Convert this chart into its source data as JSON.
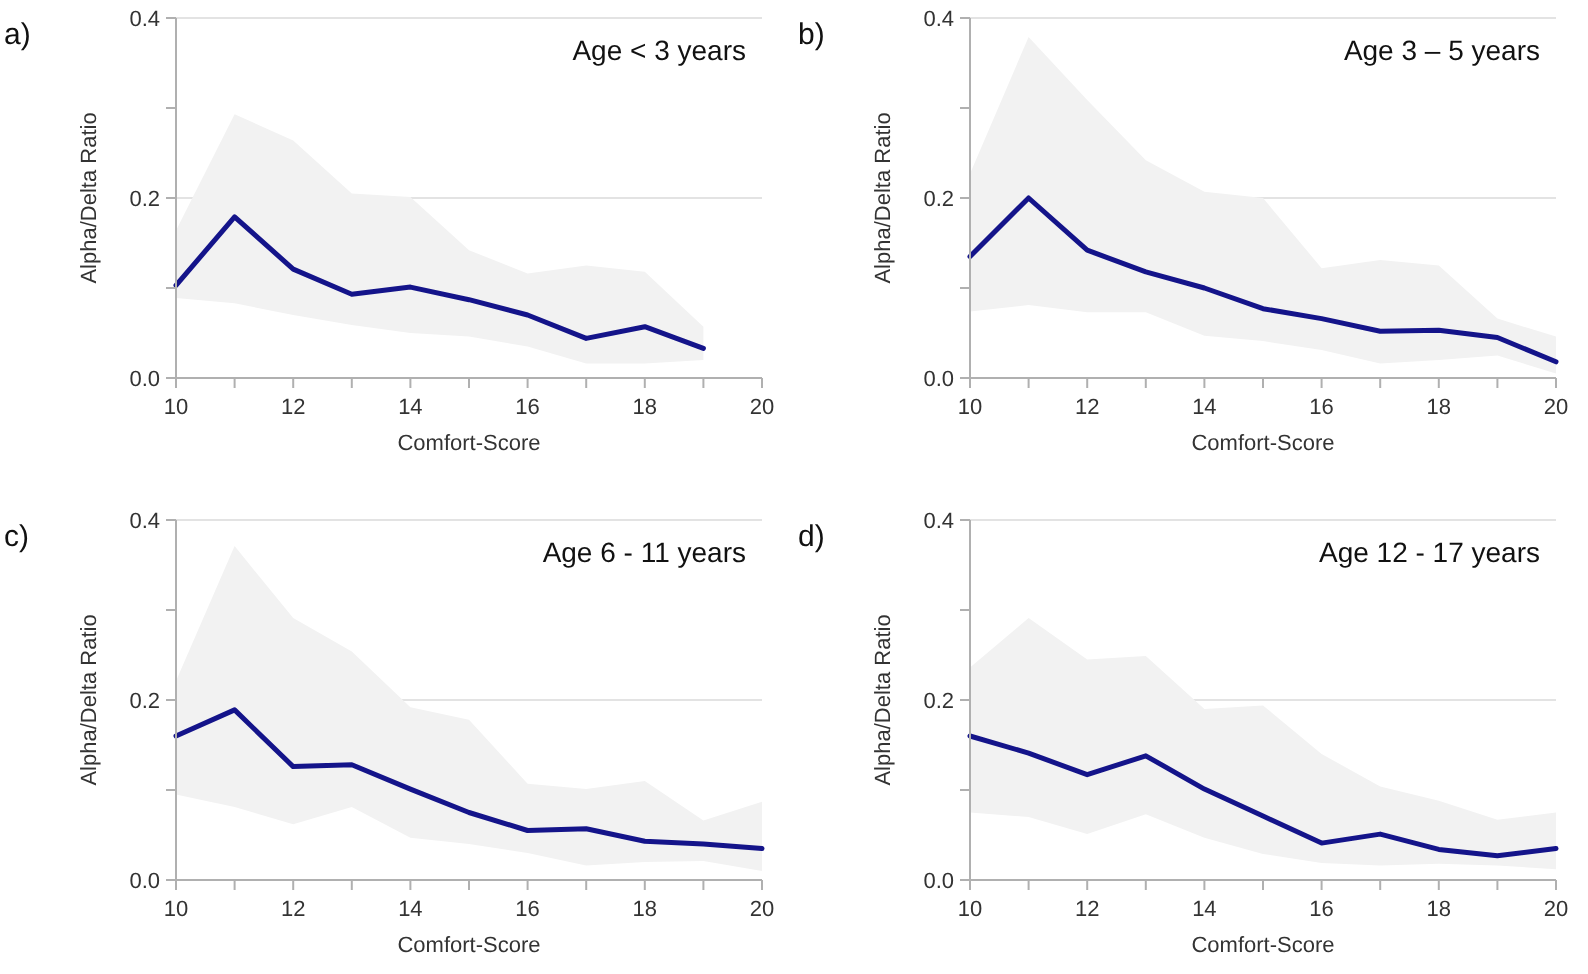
{
  "chart_data": [
    {
      "type": "line",
      "title": "a)",
      "subtitle": "Age < 3 years",
      "xlabel": "Comfort-Score",
      "ylabel": "Alpha/Delta Ratio",
      "x": [
        10,
        11,
        12,
        13,
        14,
        15,
        16,
        17,
        18,
        19
      ],
      "xlim": [
        10,
        20
      ],
      "xticks": [
        10,
        {
          "value": 11,
          "label": null
        },
        12,
        {
          "value": 13,
          "label": null
        },
        14,
        {
          "value": 15,
          "label": null
        },
        16,
        {
          "value": 17,
          "label": null
        },
        18,
        {
          "value": 19,
          "label": null
        },
        20
      ],
      "ylim": [
        0,
        0.4
      ],
      "yticks": [
        {
          "value": 0,
          "label": "0.0"
        },
        {
          "value": 0.1,
          "label": null
        },
        {
          "value": 0.2,
          "label": "0.2"
        },
        {
          "value": 0.3,
          "label": null
        },
        {
          "value": 0.4,
          "label": "0.4"
        }
      ],
      "grid": "y",
      "series": [
        {
          "color": "#14148a",
          "values": [
            0.103,
            0.179,
            0.121,
            0.093,
            0.101,
            0.087,
            0.07,
            0.044,
            0.057,
            0.033
          ],
          "lower": [
            0.089,
            0.083,
            0.07,
            0.059,
            0.05,
            0.046,
            0.035,
            0.016,
            0.016,
            0.02
          ],
          "upper": [
            0.164,
            0.293,
            0.264,
            0.205,
            0.201,
            0.142,
            0.116,
            0.125,
            0.118,
            0.057
          ]
        }
      ]
    },
    {
      "type": "line",
      "title": "b)",
      "subtitle": "Age 3 – 5 years",
      "xlabel": "Comfort-Score",
      "ylabel": "Alpha/Delta Ratio",
      "x": [
        10,
        11,
        12,
        13,
        14,
        15,
        16,
        17,
        18,
        19,
        20
      ],
      "xlim": [
        10,
        20
      ],
      "xticks": [
        10,
        {
          "value": 11,
          "label": null
        },
        12,
        {
          "value": 13,
          "label": null
        },
        14,
        {
          "value": 15,
          "label": null
        },
        16,
        {
          "value": 17,
          "label": null
        },
        18,
        {
          "value": 19,
          "label": null
        },
        20
      ],
      "ylim": [
        0,
        0.4
      ],
      "yticks": [
        {
          "value": 0,
          "label": "0.0"
        },
        {
          "value": 0.1,
          "label": null
        },
        {
          "value": 0.2,
          "label": "0.2"
        },
        {
          "value": 0.3,
          "label": null
        },
        {
          "value": 0.4,
          "label": "0.4"
        }
      ],
      "grid": "y",
      "series": [
        {
          "color": "#14148a",
          "values": [
            0.135,
            0.2,
            0.142,
            0.118,
            0.1,
            0.077,
            0.066,
            0.052,
            0.053,
            0.045,
            0.018
          ],
          "lower": [
            0.074,
            0.081,
            0.073,
            0.073,
            0.047,
            0.041,
            0.031,
            0.016,
            0.02,
            0.025,
            0.005
          ],
          "upper": [
            0.227,
            0.379,
            0.309,
            0.242,
            0.207,
            0.2,
            0.122,
            0.131,
            0.125,
            0.066,
            0.046
          ]
        }
      ]
    },
    {
      "type": "line",
      "title": "c)",
      "subtitle": "Age 6 - 11 years",
      "xlabel": "Comfort-Score",
      "ylabel": "Alpha/Delta Ratio",
      "x": [
        10,
        11,
        12,
        13,
        14,
        15,
        16,
        17,
        18,
        19,
        20
      ],
      "xlim": [
        10,
        20
      ],
      "xticks": [
        10,
        {
          "value": 11,
          "label": null
        },
        12,
        {
          "value": 13,
          "label": null
        },
        14,
        {
          "value": 15,
          "label": null
        },
        16,
        {
          "value": 17,
          "label": null
        },
        18,
        {
          "value": 19,
          "label": null
        },
        20
      ],
      "ylim": [
        0,
        0.4
      ],
      "yticks": [
        {
          "value": 0,
          "label": "0.0"
        },
        {
          "value": 0.1,
          "label": null
        },
        {
          "value": 0.2,
          "label": "0.2"
        },
        {
          "value": 0.3,
          "label": null
        },
        {
          "value": 0.4,
          "label": "0.4"
        }
      ],
      "grid": "y",
      "series": [
        {
          "color": "#14148a",
          "values": [
            0.16,
            0.189,
            0.126,
            0.128,
            0.101,
            0.075,
            0.055,
            0.057,
            0.043,
            0.04,
            0.035
          ],
          "lower": [
            0.095,
            0.081,
            0.062,
            0.081,
            0.047,
            0.04,
            0.03,
            0.016,
            0.02,
            0.021,
            0.01
          ],
          "upper": [
            0.221,
            0.371,
            0.291,
            0.254,
            0.192,
            0.178,
            0.107,
            0.101,
            0.11,
            0.066,
            0.087
          ]
        }
      ]
    },
    {
      "type": "line",
      "title": "d)",
      "subtitle": "Age 12 - 17 years",
      "xlabel": "Comfort-Score",
      "ylabel": "Alpha/Delta Ratio",
      "x": [
        10,
        11,
        12,
        13,
        14,
        15,
        16,
        17,
        18,
        19,
        20
      ],
      "xlim": [
        10,
        20
      ],
      "xticks": [
        10,
        {
          "value": 11,
          "label": null
        },
        12,
        {
          "value": 13,
          "label": null
        },
        14,
        {
          "value": 15,
          "label": null
        },
        16,
        {
          "value": 17,
          "label": null
        },
        18,
        {
          "value": 19,
          "label": null
        },
        20
      ],
      "ylim": [
        0,
        0.4
      ],
      "yticks": [
        {
          "value": 0,
          "label": "0.0"
        },
        {
          "value": 0.1,
          "label": null
        },
        {
          "value": 0.2,
          "label": "0.2"
        },
        {
          "value": 0.3,
          "label": null
        },
        {
          "value": 0.4,
          "label": "0.4"
        }
      ],
      "grid": "y",
      "series": [
        {
          "color": "#14148a",
          "values": [
            0.16,
            0.141,
            0.117,
            0.138,
            0.101,
            0.071,
            0.041,
            0.051,
            0.034,
            0.027,
            0.035
          ],
          "lower": [
            0.075,
            0.07,
            0.051,
            0.073,
            0.047,
            0.029,
            0.019,
            0.016,
            0.018,
            0.016,
            0.012
          ],
          "upper": [
            0.236,
            0.291,
            0.245,
            0.249,
            0.19,
            0.194,
            0.14,
            0.104,
            0.088,
            0.067,
            0.075
          ]
        }
      ]
    }
  ]
}
